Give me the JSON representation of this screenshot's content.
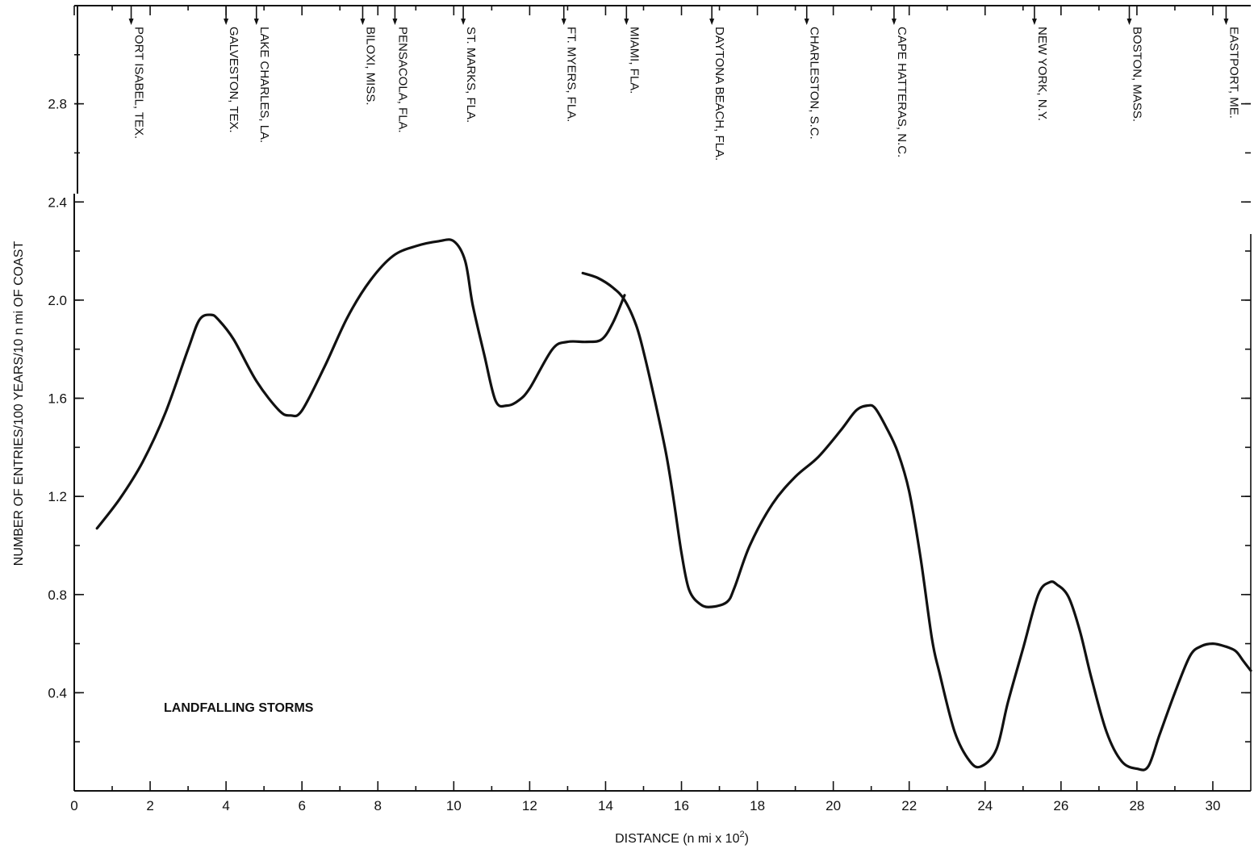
{
  "chart_data": {
    "type": "line",
    "title": "",
    "xlabel": "DISTANCE (n mi x 10",
    "xlabel_superscript": "2",
    "xlabel_suffix": ")",
    "ylabel": "NUMBER OF ENTRIES/100 YEARS/10 n mi OF COAST",
    "xlim": [
      0,
      31
    ],
    "ylim": [
      0,
      3.2
    ],
    "x_ticks": [
      0,
      2,
      4,
      6,
      8,
      10,
      12,
      14,
      16,
      18,
      20,
      22,
      24,
      26,
      28,
      30
    ],
    "x_tick_labels": [
      "0",
      "2",
      "4",
      "6",
      "8",
      "10",
      "12",
      "14",
      "16",
      "18",
      "20",
      "22",
      "24",
      "26",
      "28",
      "30"
    ],
    "y_ticks": [
      0.4,
      0.8,
      1.2,
      1.6,
      2.0,
      2.4,
      2.8
    ],
    "y_tick_labels": [
      "0.4",
      "0.8",
      "1.2",
      "1.6",
      "2.0",
      "2.4",
      "2.8"
    ],
    "grid": false,
    "annotation": "LANDFALLING STORMS",
    "line_color": "#111111",
    "locations": [
      {
        "name": "PORT ISABEL, TEX.",
        "x": 1.5
      },
      {
        "name": "GALVESTON, TEX.",
        "x": 4.0
      },
      {
        "name": "LAKE CHARLES, LA.",
        "x": 4.8
      },
      {
        "name": "BILOXI, MISS.",
        "x": 7.6
      },
      {
        "name": "PENSACOLA, FLA.",
        "x": 8.45
      },
      {
        "name": "ST. MARKS, FLA.",
        "x": 10.25
      },
      {
        "name": "FT. MYERS, FLA.",
        "x": 12.9
      },
      {
        "name": "MIAMI, FLA.",
        "x": 14.55
      },
      {
        "name": "DAYTONA BEACH, FLA.",
        "x": 16.8
      },
      {
        "name": "CHARLESTON, S.C.",
        "x": 19.3
      },
      {
        "name": "CAPE HATTERAS, N.C.",
        "x": 21.6
      },
      {
        "name": "NEW YORK, N.Y.",
        "x": 25.3
      },
      {
        "name": "BOSTON, MASS.",
        "x": 27.8
      },
      {
        "name": "EASTPORT, ME.",
        "x": 30.35
      }
    ],
    "series": [
      {
        "x": [
          0.6,
          1.2,
          1.8,
          2.4,
          3.0,
          3.3,
          3.6,
          3.8,
          4.2,
          4.8,
          5.4,
          5.7,
          6.0,
          6.6,
          7.2,
          7.8,
          8.4,
          9.0,
          9.6,
          10.0,
          10.3,
          10.5,
          10.8,
          11.1,
          11.4,
          11.7,
          12.0,
          12.6,
          13.0,
          13.5,
          13.9,
          14.2,
          14.5
        ],
        "y": [
          1.07,
          1.19,
          1.34,
          1.54,
          1.8,
          1.92,
          1.94,
          1.92,
          1.84,
          1.67,
          1.55,
          1.53,
          1.55,
          1.73,
          1.93,
          2.08,
          2.18,
          2.22,
          2.24,
          2.24,
          2.16,
          1.98,
          1.78,
          1.59,
          1.57,
          1.59,
          1.64,
          1.8,
          1.83,
          1.83,
          1.84,
          1.91,
          2.02
        ]
      },
      {
        "x": [
          13.4,
          13.8,
          14.2,
          14.5,
          14.8,
          15.0,
          15.3,
          15.6,
          15.8,
          16.0,
          16.2,
          16.5,
          16.8,
          17.2,
          17.4,
          17.8,
          18.4,
          19.0,
          19.6,
          20.2,
          20.6,
          20.9,
          21.1,
          21.4,
          21.7,
          22.0,
          22.3,
          22.6,
          22.8,
          23.2,
          23.6,
          23.9,
          24.3,
          24.6,
          25.0,
          25.4,
          25.7,
          25.9,
          26.2,
          26.5,
          26.8,
          27.2,
          27.6,
          28.0,
          28.3,
          28.6,
          29.0,
          29.4,
          29.7,
          30.0,
          30.3,
          30.6,
          30.8,
          31.0
        ],
        "y": [
          2.11,
          2.09,
          2.05,
          2.0,
          1.9,
          1.79,
          1.59,
          1.37,
          1.18,
          0.97,
          0.82,
          0.76,
          0.75,
          0.77,
          0.83,
          1.0,
          1.17,
          1.28,
          1.36,
          1.47,
          1.55,
          1.57,
          1.56,
          1.48,
          1.38,
          1.22,
          0.95,
          0.62,
          0.48,
          0.24,
          0.12,
          0.1,
          0.17,
          0.36,
          0.58,
          0.8,
          0.85,
          0.84,
          0.79,
          0.65,
          0.46,
          0.24,
          0.12,
          0.09,
          0.1,
          0.23,
          0.4,
          0.55,
          0.59,
          0.6,
          0.59,
          0.57,
          0.53,
          0.49
        ]
      }
    ]
  }
}
